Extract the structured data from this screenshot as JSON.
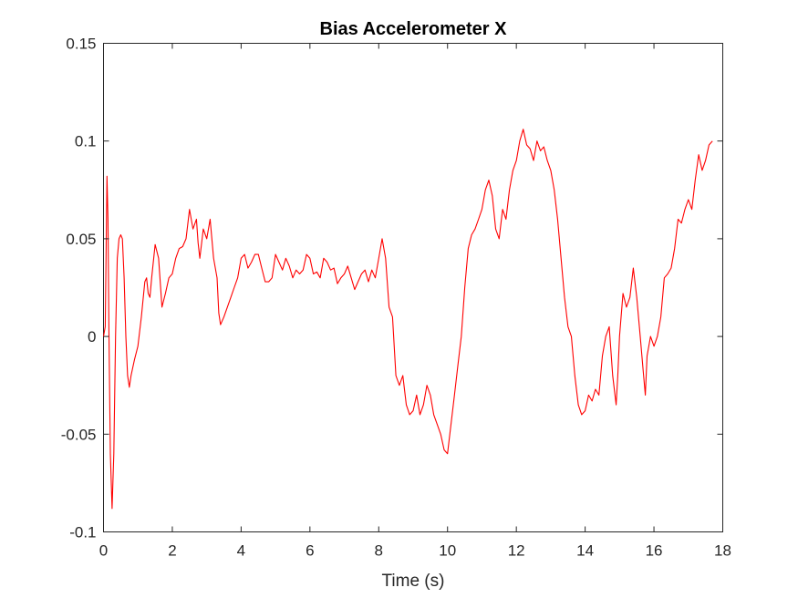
{
  "chart_data": {
    "type": "line",
    "title": "Bias Accelerometer X",
    "xlabel": "Time (s)",
    "ylabel": "",
    "xlim": [
      0,
      18
    ],
    "ylim": [
      -0.1,
      0.15
    ],
    "xticks": [
      0,
      2,
      4,
      6,
      8,
      10,
      12,
      14,
      16,
      18
    ],
    "xtick_labels": [
      "0",
      "2",
      "4",
      "6",
      "8",
      "10",
      "12",
      "14",
      "16",
      "18"
    ],
    "yticks": [
      -0.1,
      -0.05,
      0,
      0.05,
      0.1,
      0.15
    ],
    "ytick_labels": [
      "-0.1",
      "-0.05",
      "0",
      "0.05",
      "0.1",
      "0.15"
    ],
    "grid": false,
    "legend": false,
    "colors": {
      "series": "#ff0000",
      "axes": "#262626",
      "background": "#ffffff"
    },
    "series": [
      {
        "color": "#ff0000",
        "x": [
          0.0,
          0.05,
          0.1,
          0.13,
          0.16,
          0.2,
          0.25,
          0.3,
          0.35,
          0.4,
          0.45,
          0.5,
          0.55,
          0.6,
          0.65,
          0.7,
          0.75,
          0.8,
          0.9,
          1.0,
          1.1,
          1.2,
          1.25,
          1.3,
          1.35,
          1.4,
          1.5,
          1.6,
          1.7,
          1.8,
          1.9,
          2.0,
          2.1,
          2.2,
          2.3,
          2.4,
          2.5,
          2.6,
          2.7,
          2.75,
          2.8,
          2.9,
          3.0,
          3.1,
          3.2,
          3.3,
          3.35,
          3.4,
          3.5,
          3.6,
          3.7,
          3.8,
          3.9,
          4.0,
          4.1,
          4.2,
          4.3,
          4.4,
          4.5,
          4.6,
          4.7,
          4.8,
          4.9,
          5.0,
          5.1,
          5.2,
          5.3,
          5.4,
          5.5,
          5.6,
          5.7,
          5.8,
          5.9,
          6.0,
          6.1,
          6.2,
          6.3,
          6.4,
          6.5,
          6.6,
          6.7,
          6.8,
          6.9,
          7.0,
          7.1,
          7.2,
          7.3,
          7.4,
          7.5,
          7.6,
          7.7,
          7.8,
          7.9,
          8.0,
          8.1,
          8.2,
          8.3,
          8.4,
          8.5,
          8.6,
          8.7,
          8.8,
          8.9,
          9.0,
          9.1,
          9.2,
          9.3,
          9.4,
          9.5,
          9.6,
          9.7,
          9.8,
          9.9,
          10.0,
          10.1,
          10.2,
          10.3,
          10.4,
          10.5,
          10.6,
          10.7,
          10.8,
          10.9,
          11.0,
          11.1,
          11.2,
          11.3,
          11.4,
          11.5,
          11.6,
          11.7,
          11.8,
          11.9,
          12.0,
          12.1,
          12.2,
          12.3,
          12.4,
          12.5,
          12.6,
          12.7,
          12.8,
          12.9,
          13.0,
          13.1,
          13.2,
          13.3,
          13.4,
          13.5,
          13.6,
          13.7,
          13.8,
          13.9,
          14.0,
          14.1,
          14.2,
          14.3,
          14.4,
          14.5,
          14.6,
          14.7,
          14.8,
          14.9,
          14.95,
          15.0,
          15.1,
          15.2,
          15.3,
          15.4,
          15.5,
          15.6,
          15.7,
          15.75,
          15.8,
          15.9,
          16.0,
          16.1,
          16.2,
          16.3,
          16.4,
          16.5,
          16.6,
          16.7,
          16.8,
          16.9,
          17.0,
          17.1,
          17.2,
          17.3,
          17.4,
          17.5,
          17.6,
          17.7
        ],
        "y": [
          0.0,
          0.005,
          0.082,
          0.06,
          0.0,
          -0.06,
          -0.088,
          -0.06,
          0.0,
          0.04,
          0.05,
          0.052,
          0.05,
          0.03,
          0.0,
          -0.02,
          -0.026,
          -0.02,
          -0.012,
          -0.005,
          0.01,
          0.028,
          0.03,
          0.022,
          0.02,
          0.03,
          0.047,
          0.04,
          0.015,
          0.022,
          0.03,
          0.032,
          0.04,
          0.045,
          0.046,
          0.05,
          0.065,
          0.055,
          0.06,
          0.048,
          0.04,
          0.055,
          0.05,
          0.06,
          0.04,
          0.03,
          0.012,
          0.006,
          0.01,
          0.015,
          0.02,
          0.025,
          0.03,
          0.04,
          0.042,
          0.035,
          0.038,
          0.042,
          0.042,
          0.035,
          0.028,
          0.028,
          0.03,
          0.042,
          0.038,
          0.034,
          0.04,
          0.036,
          0.03,
          0.034,
          0.032,
          0.034,
          0.042,
          0.04,
          0.032,
          0.033,
          0.03,
          0.04,
          0.038,
          0.034,
          0.035,
          0.027,
          0.03,
          0.032,
          0.036,
          0.03,
          0.024,
          0.028,
          0.032,
          0.034,
          0.028,
          0.034,
          0.03,
          0.04,
          0.05,
          0.04,
          0.015,
          0.01,
          -0.02,
          -0.025,
          -0.02,
          -0.035,
          -0.04,
          -0.038,
          -0.03,
          -0.04,
          -0.035,
          -0.025,
          -0.03,
          -0.04,
          -0.045,
          -0.05,
          -0.058,
          -0.06,
          -0.045,
          -0.03,
          -0.015,
          0.0,
          0.025,
          0.045,
          0.052,
          0.055,
          0.06,
          0.065,
          0.075,
          0.08,
          0.072,
          0.055,
          0.05,
          0.065,
          0.06,
          0.075,
          0.085,
          0.09,
          0.1,
          0.106,
          0.098,
          0.096,
          0.09,
          0.1,
          0.095,
          0.097,
          0.09,
          0.085,
          0.075,
          0.06,
          0.04,
          0.02,
          0.005,
          0.0,
          -0.02,
          -0.035,
          -0.04,
          -0.038,
          -0.03,
          -0.033,
          -0.027,
          -0.03,
          -0.01,
          0.0,
          0.005,
          -0.02,
          -0.035,
          -0.02,
          0.0,
          0.022,
          0.015,
          0.02,
          0.035,
          0.02,
          0.0,
          -0.02,
          -0.03,
          -0.01,
          0.0,
          -0.005,
          0.0,
          0.01,
          0.03,
          0.032,
          0.035,
          0.045,
          0.06,
          0.058,
          0.065,
          0.07,
          0.065,
          0.08,
          0.093,
          0.085,
          0.09,
          0.098,
          0.1
        ]
      }
    ]
  }
}
